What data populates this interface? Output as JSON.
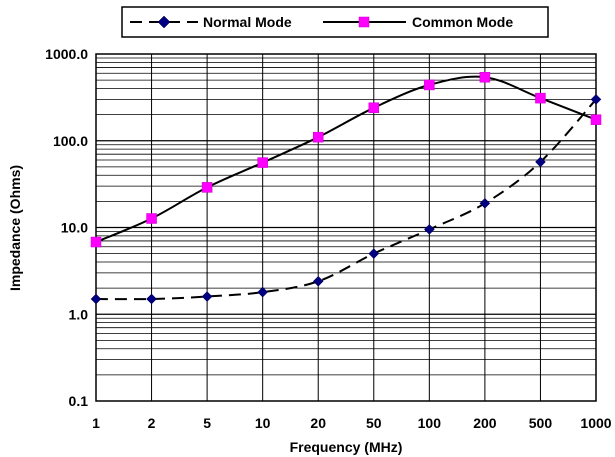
{
  "chart_data": {
    "type": "line",
    "title": "",
    "xlabel": "Frequency (MHz)",
    "ylabel": "Impedance (Ohms)",
    "x_scale": "log",
    "y_scale": "log",
    "xlim": [
      1,
      1000
    ],
    "ylim": [
      0.1,
      1000
    ],
    "x_ticks": [
      "1",
      "2",
      "5",
      "10",
      "20",
      "50",
      "100",
      "200",
      "500",
      "1000"
    ],
    "x_tick_values": [
      1,
      2,
      5,
      10,
      20,
      50,
      100,
      200,
      500,
      1000
    ],
    "y_ticks": [
      "0.1",
      "1.0",
      "10.0",
      "100.0",
      "1000.0"
    ],
    "y_tick_values": [
      0.1,
      1,
      10,
      100,
      1000
    ],
    "grid": true,
    "legend_position": "top",
    "series": [
      {
        "name": "Normal Mode",
        "color": "#000080",
        "line_style": "dashed",
        "marker": "diamond",
        "x": [
          1,
          2,
          5,
          10,
          20,
          50,
          100,
          200,
          500,
          1000
        ],
        "y": [
          1.5,
          1.5,
          1.6,
          1.8,
          2.4,
          5.0,
          9.5,
          19,
          57,
          300
        ]
      },
      {
        "name": "Common Mode",
        "color": "#ff00ff",
        "line_style": "solid",
        "marker": "square",
        "x": [
          1,
          2,
          5,
          10,
          20,
          50,
          100,
          200,
          500,
          1000
        ],
        "y": [
          6.8,
          12.7,
          29,
          56,
          110,
          240,
          440,
          540,
          310,
          175
        ]
      }
    ]
  }
}
